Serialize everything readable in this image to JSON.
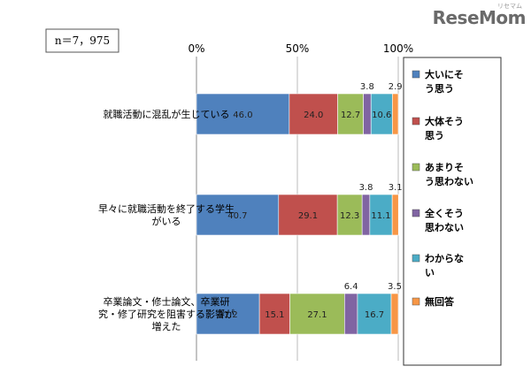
{
  "logo_text": "ReseMom",
  "logo_small": "リセマム",
  "sample_label": "n＝7，975",
  "chart_data": {
    "type": "bar",
    "orientation": "horizontal",
    "stacked": true,
    "xlim": [
      0,
      100
    ],
    "xticks": [
      "0%",
      "50%",
      "100%"
    ],
    "grid": true,
    "legend_position": "right",
    "categories": [
      "就職活動に混乱が生じている",
      "早々に就職活動を終了する学生がいる",
      "卒業論文・修士論文、卒業研究・修了研究を阻害する影響が増えた"
    ],
    "category_lines": [
      [
        "就職活動に混乱が生じている"
      ],
      [
        "早々に就職活動を終了する学生",
        "がいる"
      ],
      [
        "卒業論文・修士論文、卒業研",
        "究・修了研究を阻害する影響が",
        "増えた"
      ]
    ],
    "series": [
      {
        "name": "大いにそう思う",
        "legend_lines": [
          "大いにそ",
          "う思う"
        ],
        "color": "#4F81BD",
        "values": [
          46.0,
          40.7,
          31.2
        ]
      },
      {
        "name": "大体そう思う",
        "legend_lines": [
          "大体そう",
          "思う"
        ],
        "color": "#C0504D",
        "values": [
          24.0,
          29.1,
          15.1
        ]
      },
      {
        "name": "あまりそう思わない",
        "legend_lines": [
          "あまりそ",
          "う思わない"
        ],
        "color": "#9BBB59",
        "values": [
          12.7,
          12.3,
          27.1
        ]
      },
      {
        "name": "全くそう思わない",
        "legend_lines": [
          "全くそう",
          "思わない"
        ],
        "color": "#8064A2",
        "values": [
          3.8,
          3.8,
          6.4
        ]
      },
      {
        "name": "わからない",
        "legend_lines": [
          "わからな",
          "い"
        ],
        "color": "#4BACC6",
        "values": [
          10.6,
          11.1,
          16.7
        ]
      },
      {
        "name": "無回答",
        "legend_lines": [
          "無回答"
        ],
        "color": "#F79646",
        "values": [
          2.9,
          3.1,
          3.5
        ]
      }
    ],
    "inside_labels": [
      [
        "46.0",
        "24.0",
        "12.7",
        "",
        "10.6",
        ""
      ],
      [
        "40.7",
        "29.1",
        "12.3",
        "",
        "11.1",
        ""
      ],
      [
        "31.2",
        "15.1",
        "27.1",
        "",
        "16.7",
        ""
      ]
    ],
    "above_labels": [
      {
        "series": 3,
        "text": [
          "3.8",
          "3.8",
          "6.4"
        ]
      },
      {
        "series": 5,
        "text": [
          "2.9",
          "3.1",
          "3.5"
        ]
      }
    ]
  }
}
